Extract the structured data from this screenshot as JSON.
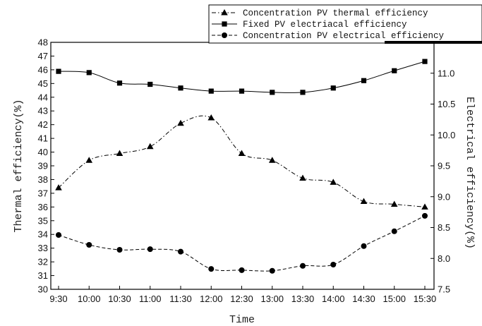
{
  "chart_data": {
    "type": "line",
    "x": [
      "9:30",
      "10:00",
      "10:30",
      "11:00",
      "11:30",
      "12:00",
      "12:30",
      "13:00",
      "13:30",
      "14:00",
      "14:30",
      "15:00",
      "15:30"
    ],
    "xlabel": "Time",
    "ylabel_left": "Thermal efficiency(%)",
    "ylabel_right": "Electrical efficiency(%)",
    "ylim_left": [
      30,
      48
    ],
    "yticks_left": [
      "30",
      "31",
      "32",
      "33",
      "34",
      "35",
      "36",
      "37",
      "38",
      "39",
      "40",
      "41",
      "42",
      "43",
      "44",
      "45",
      "46",
      "47",
      "48"
    ],
    "ylim_right": [
      7.5,
      11.5
    ],
    "yticks_right": [
      "7.5",
      "8.0",
      "8.5",
      "9.0",
      "9.5",
      "10.0",
      "10.5",
      "11.0"
    ],
    "grid": false,
    "legend_position": "top-right",
    "series": [
      {
        "name": "Concentration PV thermal efficiency",
        "axis": "left",
        "marker": "triangle",
        "line_style": "dash-dot",
        "values": [
          37.4,
          39.4,
          39.9,
          40.4,
          42.1,
          42.5,
          39.9,
          39.4,
          38.1,
          37.8,
          36.4,
          36.2,
          36.0
        ]
      },
      {
        "name": "Fixed PV electriacal efficiency",
        "axis": "right",
        "marker": "square",
        "line_style": "solid",
        "values": [
          11.03,
          11.01,
          10.84,
          10.82,
          10.76,
          10.71,
          10.71,
          10.69,
          10.69,
          10.76,
          10.88,
          11.04,
          11.19
        ]
      },
      {
        "name": "Concentration PV electrical efficiency",
        "axis": "right",
        "marker": "circle",
        "line_style": "dashed",
        "values": [
          8.38,
          8.22,
          8.14,
          8.15,
          8.11,
          7.83,
          7.81,
          7.8,
          7.88,
          7.9,
          8.2,
          8.44,
          8.69
        ]
      }
    ]
  }
}
